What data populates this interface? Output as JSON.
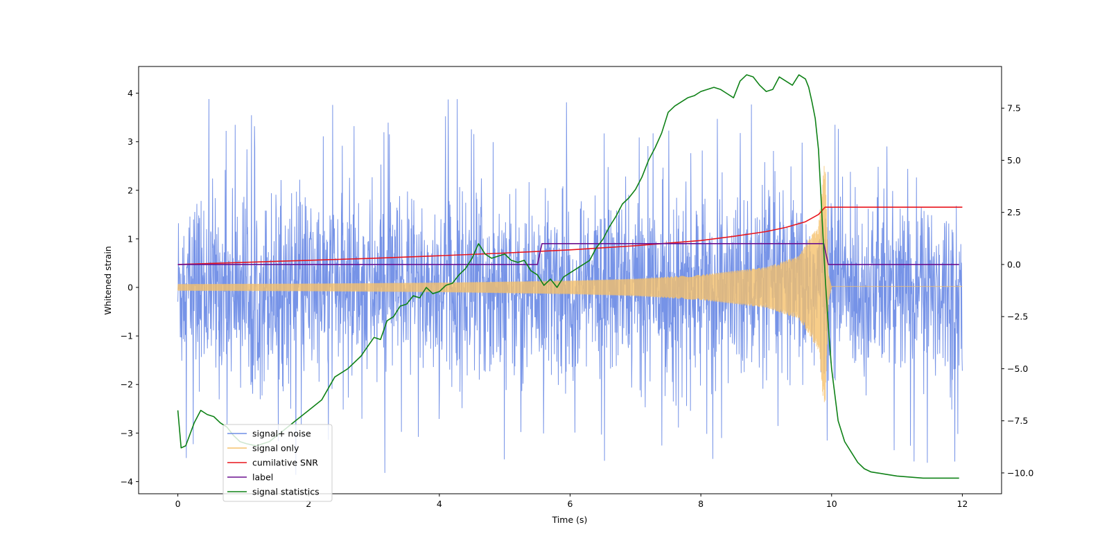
{
  "chart_data": {
    "type": "line",
    "xlabel": "Time (s)",
    "ylabel": "Whitened strain",
    "xlim": [
      -0.6,
      12.6
    ],
    "ylim": [
      -4.25,
      4.55
    ],
    "y2lim": [
      -11.0,
      9.5
    ],
    "xticks": [
      0,
      2,
      4,
      6,
      8,
      10,
      12
    ],
    "xtick_labels": [
      "0",
      "2",
      "4",
      "6",
      "8",
      "10",
      "12"
    ],
    "yticks": [
      -4,
      -3,
      -2,
      -1,
      0,
      1,
      2,
      3,
      4
    ],
    "ytick_labels": [
      "−4",
      "−3",
      "−2",
      "−1",
      "0",
      "1",
      "2",
      "3",
      "4"
    ],
    "y2ticks": [
      -10,
      -7.5,
      -5,
      -2.5,
      0,
      2.5,
      5,
      7.5
    ],
    "y2tick_labels": [
      "−10.0",
      "−7.5",
      "−5.0",
      "−2.5",
      "0.0",
      "2.5",
      "5.0",
      "7.5"
    ],
    "legend_position": "lower-left",
    "series": [
      {
        "name": "signal+ noise",
        "color": "#6f8de6",
        "axis": "left",
        "kind": "noise",
        "x_range": [
          0,
          12
        ],
        "envelope": {
          "typical": 1.0,
          "peak_max": 4.17,
          "peak_min": -3.86
        }
      },
      {
        "name": "signal only",
        "color": "#f5c16c",
        "axis": "left",
        "kind": "chirp",
        "t_merge": 9.9,
        "amplitude": [
          [
            0,
            0.07
          ],
          [
            2,
            0.08
          ],
          [
            4,
            0.1
          ],
          [
            6,
            0.14
          ],
          [
            7,
            0.18
          ],
          [
            8,
            0.26
          ],
          [
            9,
            0.42
          ],
          [
            9.5,
            0.65
          ],
          [
            9.8,
            1.3
          ],
          [
            9.9,
            2.7
          ],
          [
            9.95,
            0.3
          ],
          [
            10.0,
            0.0
          ],
          [
            12,
            0.0
          ]
        ],
        "offset_after_merge": 0.02
      },
      {
        "name": "cumilative SNR",
        "color": "#e8141c",
        "axis": "right",
        "x": [
          0,
          1,
          2,
          3,
          4,
          5,
          6,
          7,
          8,
          8.5,
          9,
          9.3,
          9.6,
          9.8,
          9.9,
          10,
          12
        ],
        "y": [
          0.0,
          0.1,
          0.2,
          0.3,
          0.42,
          0.55,
          0.7,
          0.9,
          1.15,
          1.35,
          1.58,
          1.78,
          2.05,
          2.4,
          2.75,
          2.75,
          2.75
        ]
      },
      {
        "name": "label",
        "color": "#6a0f8e",
        "axis": "right",
        "x": [
          0,
          5.5,
          5.57,
          9.88,
          9.95,
          11.95
        ],
        "y": [
          0.0,
          0.0,
          1.0,
          1.0,
          0.0,
          0.0
        ]
      },
      {
        "name": "signal statistics",
        "color": "#0e8116",
        "axis": "right",
        "x": [
          0,
          0.05,
          0.12,
          0.25,
          0.35,
          0.45,
          0.55,
          0.65,
          0.75,
          0.85,
          0.95,
          1.05,
          1.2,
          1.4,
          1.6,
          1.8,
          2.0,
          2.2,
          2.4,
          2.6,
          2.8,
          3.0,
          3.1,
          3.2,
          3.3,
          3.4,
          3.5,
          3.6,
          3.7,
          3.8,
          3.9,
          4.0,
          4.1,
          4.2,
          4.3,
          4.4,
          4.5,
          4.6,
          4.7,
          4.8,
          4.9,
          5.0,
          5.1,
          5.2,
          5.3,
          5.4,
          5.5,
          5.6,
          5.7,
          5.8,
          5.9,
          6.0,
          6.1,
          6.2,
          6.3,
          6.4,
          6.5,
          6.6,
          6.7,
          6.8,
          6.9,
          7.0,
          7.1,
          7.2,
          7.3,
          7.4,
          7.5,
          7.6,
          7.7,
          7.8,
          7.9,
          8.0,
          8.1,
          8.2,
          8.3,
          8.4,
          8.5,
          8.6,
          8.7,
          8.8,
          8.9,
          9.0,
          9.1,
          9.2,
          9.3,
          9.4,
          9.5,
          9.6,
          9.65,
          9.7,
          9.75,
          9.8,
          9.85,
          9.9,
          9.95,
          10.0,
          10.1,
          10.2,
          10.3,
          10.4,
          10.5,
          10.6,
          10.7,
          10.8,
          11.0,
          11.2,
          11.4,
          11.6,
          11.95
        ],
        "y": [
          -7.0,
          -8.8,
          -8.7,
          -7.6,
          -7.0,
          -7.2,
          -7.3,
          -7.6,
          -7.8,
          -8.2,
          -8.5,
          -8.6,
          -8.7,
          -8.5,
          -8.0,
          -7.5,
          -7.0,
          -6.5,
          -5.4,
          -5.0,
          -4.4,
          -3.5,
          -3.6,
          -2.7,
          -2.5,
          -2.0,
          -1.9,
          -1.5,
          -1.6,
          -1.1,
          -1.4,
          -1.3,
          -1.0,
          -0.9,
          -0.5,
          -0.2,
          0.3,
          1.0,
          0.5,
          0.3,
          0.4,
          0.5,
          0.2,
          0.1,
          0.2,
          -0.3,
          -0.5,
          -1.0,
          -0.7,
          -1.1,
          -0.6,
          -0.4,
          -0.2,
          0.0,
          0.2,
          0.8,
          1.2,
          1.8,
          2.3,
          2.9,
          3.2,
          3.6,
          4.2,
          5.0,
          5.6,
          6.3,
          7.3,
          7.6,
          7.8,
          8.0,
          8.1,
          8.3,
          8.4,
          8.5,
          8.4,
          8.2,
          8.0,
          8.8,
          9.1,
          9.0,
          8.6,
          8.3,
          8.4,
          9.0,
          8.8,
          8.6,
          9.1,
          8.9,
          8.5,
          7.8,
          7.0,
          5.5,
          2.5,
          -0.5,
          -3.0,
          -5.0,
          -7.5,
          -8.5,
          -9.0,
          -9.5,
          -9.8,
          -9.95,
          -10.0,
          -10.05,
          -10.15,
          -10.2,
          -10.25,
          -10.25,
          -10.25
        ]
      }
    ]
  }
}
